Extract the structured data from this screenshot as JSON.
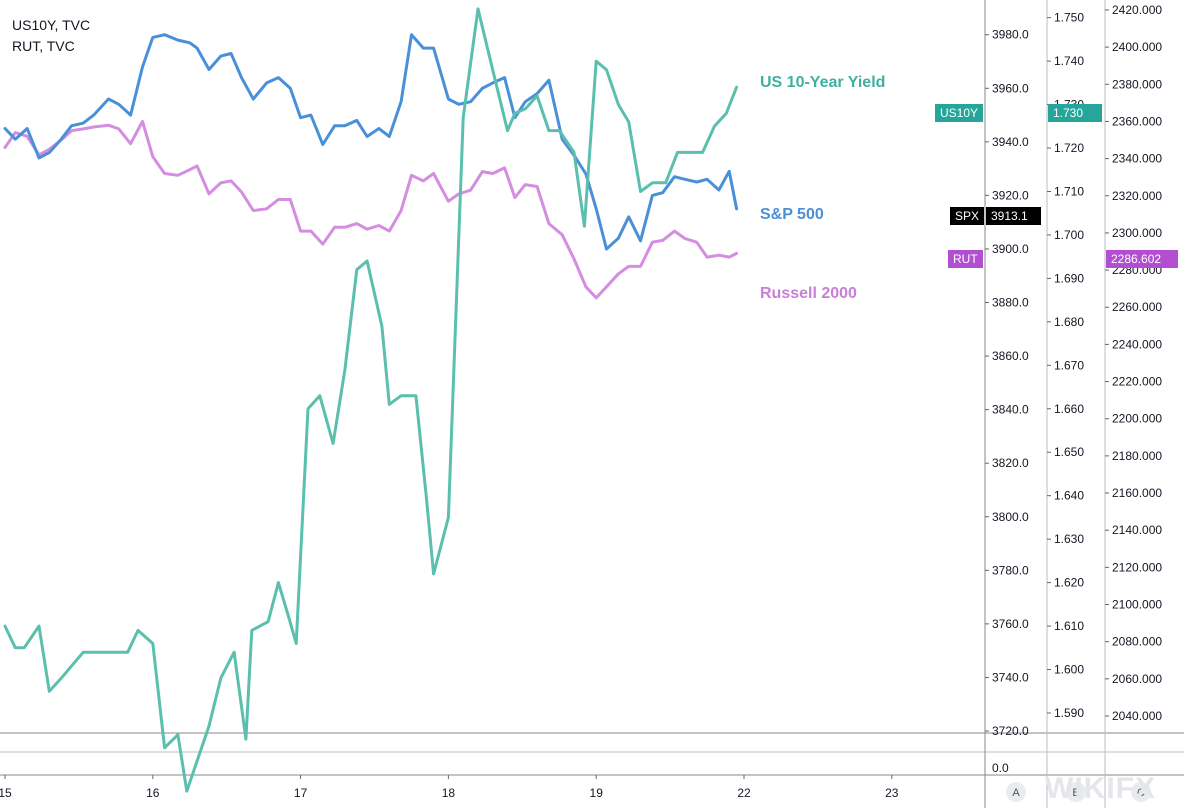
{
  "legend": {
    "line1": "US10Y, TVC",
    "line2": "RUT, TVC"
  },
  "labels": {
    "us10y": "US 10-Year Yield",
    "spx": "S&P 500",
    "rut": "Russell 2000"
  },
  "tags": {
    "us10y_name": "US10Y",
    "us10y_value": "1.730",
    "spx_name": "SPX",
    "spx_value": "3913.1",
    "rut_name": "RUT",
    "rut_value": "2286.602"
  },
  "pane_buttons": [
    "A",
    "B",
    "C"
  ],
  "lower_pane_tick": "0.0",
  "watermark": "WIKIFX",
  "colors": {
    "us10y": "#5bbfae",
    "spx": "#4a90d9",
    "rut": "#d48de0",
    "us10y_tag": "#26a69a",
    "spx_tag": "#000000",
    "rut_tag": "#b24fd0"
  },
  "chart_data": {
    "type": "line",
    "title": "",
    "x_ticks": [
      "15",
      "16",
      "17",
      "18",
      "19",
      "22",
      "23"
    ],
    "axes": {
      "spx": {
        "ticks": [
          "3720.0",
          "3740.0",
          "3760.0",
          "3780.0",
          "3800.0",
          "3820.0",
          "3840.0",
          "3860.0",
          "3880.0",
          "3900.0",
          "3920.0",
          "3940.0",
          "3960.0",
          "3980.0"
        ],
        "range": [
          3720,
          3980
        ]
      },
      "us10y": {
        "ticks": [
          "1.590",
          "1.600",
          "1.610",
          "1.620",
          "1.630",
          "1.640",
          "1.650",
          "1.660",
          "1.670",
          "1.680",
          "1.690",
          "1.700",
          "1.710",
          "1.720",
          "1.730",
          "1.740",
          "1.750"
        ],
        "range": [
          1.59,
          1.75
        ]
      },
      "rut": {
        "ticks": [
          "2040.000",
          "2060.000",
          "2080.000",
          "2100.000",
          "2120.000",
          "2140.000",
          "2160.000",
          "2180.000",
          "2200.000",
          "2220.000",
          "2240.000",
          "2260.000",
          "2280.000",
          "2300.000",
          "2320.000",
          "2340.000",
          "2360.000",
          "2380.000",
          "2400.000",
          "2420.000"
        ],
        "range": [
          2040,
          2420
        ]
      }
    },
    "series": [
      {
        "name": "US 10-Year Yield",
        "axis": "us10y",
        "color": "#5bbfae",
        "x": [
          15.0,
          15.07,
          15.13,
          15.23,
          15.3,
          15.38,
          15.53,
          15.7,
          15.83,
          15.9,
          16.0,
          16.08,
          16.17,
          16.23,
          16.38,
          16.46,
          16.55,
          16.63,
          16.67,
          16.78,
          16.85,
          16.92,
          16.97,
          17.05,
          17.13,
          17.22,
          17.3,
          17.38,
          17.45,
          17.55,
          17.6,
          17.68,
          17.78,
          17.85,
          17.9,
          18.0,
          18.1,
          18.2,
          18.3,
          18.4,
          18.45,
          18.52,
          18.6,
          18.68,
          18.75,
          18.85,
          18.92,
          19.0,
          19.07,
          19.15,
          19.22,
          19.3,
          19.38,
          19.47,
          19.55,
          19.65,
          19.72,
          19.8,
          19.88,
          19.95
        ],
        "values": [
          1.61,
          1.605,
          1.605,
          1.61,
          1.595,
          1.598,
          1.604,
          1.604,
          1.604,
          1.609,
          1.606,
          1.582,
          1.585,
          1.572,
          1.587,
          1.598,
          1.604,
          1.584,
          1.609,
          1.611,
          1.62,
          1.612,
          1.606,
          1.66,
          1.663,
          1.652,
          1.669,
          1.692,
          1.694,
          1.679,
          1.661,
          1.663,
          1.663,
          1.64,
          1.622,
          1.635,
          1.727,
          1.752,
          1.738,
          1.724,
          1.728,
          1.729,
          1.732,
          1.724,
          1.724,
          1.719,
          1.702,
          1.74,
          1.738,
          1.73,
          1.726,
          1.71,
          1.712,
          1.712,
          1.719,
          1.719,
          1.719,
          1.725,
          1.728,
          1.734
        ]
      },
      {
        "name": "S&P 500",
        "axis": "spx",
        "color": "#4a90d9",
        "x": [
          15.0,
          15.07,
          15.15,
          15.23,
          15.3,
          15.38,
          15.45,
          15.53,
          15.6,
          15.7,
          15.77,
          15.85,
          15.93,
          16.0,
          16.08,
          16.17,
          16.25,
          16.3,
          16.38,
          16.46,
          16.53,
          16.6,
          16.68,
          16.77,
          16.85,
          16.93,
          17.0,
          17.07,
          17.15,
          17.23,
          17.3,
          17.38,
          17.45,
          17.53,
          17.6,
          17.68,
          17.75,
          17.83,
          17.9,
          18.0,
          18.07,
          18.15,
          18.23,
          18.3,
          18.38,
          18.45,
          18.52,
          18.6,
          18.68,
          18.77,
          18.85,
          18.93,
          19.0,
          19.07,
          19.15,
          19.22,
          19.3,
          19.38,
          19.45,
          19.53,
          19.6,
          19.68,
          19.75,
          19.83,
          19.9,
          19.95
        ],
        "values": [
          3945,
          3941,
          3945,
          3934,
          3936,
          3941,
          3946,
          3947,
          3950,
          3956,
          3954,
          3950,
          3968,
          3979,
          3980,
          3978,
          3977,
          3975,
          3967,
          3972,
          3973,
          3964,
          3956,
          3962,
          3964,
          3960,
          3949,
          3950,
          3939,
          3946,
          3946,
          3948,
          3942,
          3945,
          3942,
          3955,
          3980,
          3975,
          3975,
          3956,
          3954,
          3955,
          3960,
          3962,
          3964,
          3949,
          3955,
          3958,
          3963,
          3941,
          3935,
          3928,
          3915,
          3900,
          3904,
          3912,
          3903,
          3920,
          3921,
          3927,
          3926,
          3925,
          3926,
          3922,
          3929,
          3915
        ]
      },
      {
        "name": "Russell 2000",
        "axis": "rut",
        "color": "#d48de0",
        "x": [
          15.0,
          15.07,
          15.15,
          15.23,
          15.3,
          15.38,
          15.45,
          15.53,
          15.6,
          15.7,
          15.77,
          15.85,
          15.93,
          16.0,
          16.08,
          16.17,
          16.25,
          16.3,
          16.38,
          16.46,
          16.53,
          16.6,
          16.68,
          16.77,
          16.85,
          16.93,
          17.0,
          17.07,
          17.15,
          17.23,
          17.3,
          17.38,
          17.45,
          17.53,
          17.6,
          17.68,
          17.75,
          17.83,
          17.9,
          18.0,
          18.07,
          18.15,
          18.23,
          18.3,
          18.38,
          18.45,
          18.52,
          18.6,
          18.68,
          18.77,
          18.85,
          18.93,
          19.0,
          19.07,
          19.15,
          19.22,
          19.3,
          19.38,
          19.45,
          19.53,
          19.6,
          19.68,
          19.75,
          19.83,
          19.9,
          19.95
        ],
        "values": [
          2346,
          2354,
          2352,
          2342,
          2345,
          2350,
          2355,
          2356,
          2357,
          2358,
          2356,
          2348,
          2360,
          2341,
          2332,
          2331,
          2334,
          2336,
          2321,
          2327,
          2328,
          2322,
          2312,
          2313,
          2318,
          2318,
          2301,
          2301,
          2294,
          2303,
          2303,
          2305,
          2302,
          2304,
          2301,
          2312,
          2331,
          2328,
          2332,
          2317,
          2321,
          2323,
          2333,
          2332,
          2335,
          2319,
          2326,
          2325,
          2305,
          2299,
          2286,
          2271,
          2265,
          2271,
          2278,
          2282,
          2282,
          2295,
          2296,
          2301,
          2297,
          2295,
          2287,
          2288,
          2287,
          2289
        ]
      }
    ]
  }
}
